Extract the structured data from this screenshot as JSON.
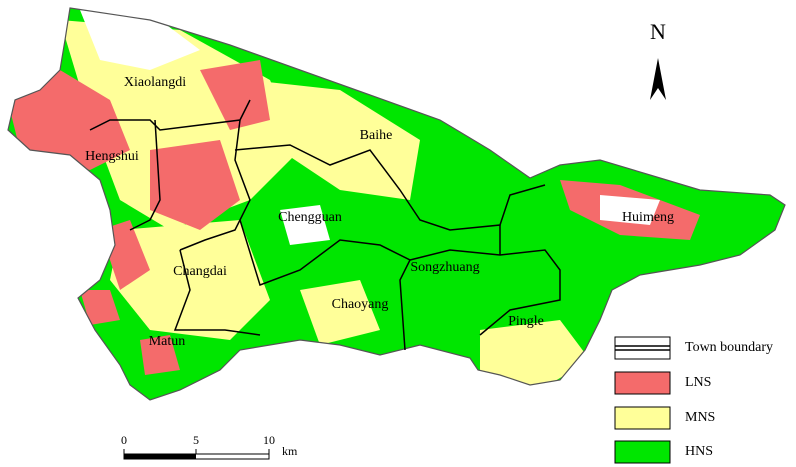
{
  "north_label": "N",
  "towns": [
    "Xiaolangdi",
    "Hengshui",
    "Baihe",
    "Chengguan",
    "Huimeng",
    "Changdai",
    "Songzhuang",
    "Chaoyang",
    "Pingle",
    "Matun"
  ],
  "legend": [
    {
      "label": "Town boundary"
    },
    {
      "label": "LNS",
      "color": "#f46b6b"
    },
    {
      "label": "MNS",
      "color": "#ffff99"
    },
    {
      "label": "HNS",
      "color": "#00e600"
    }
  ],
  "scale_bar": {
    "ticks": [
      0,
      5,
      10
    ],
    "unit": "km"
  }
}
